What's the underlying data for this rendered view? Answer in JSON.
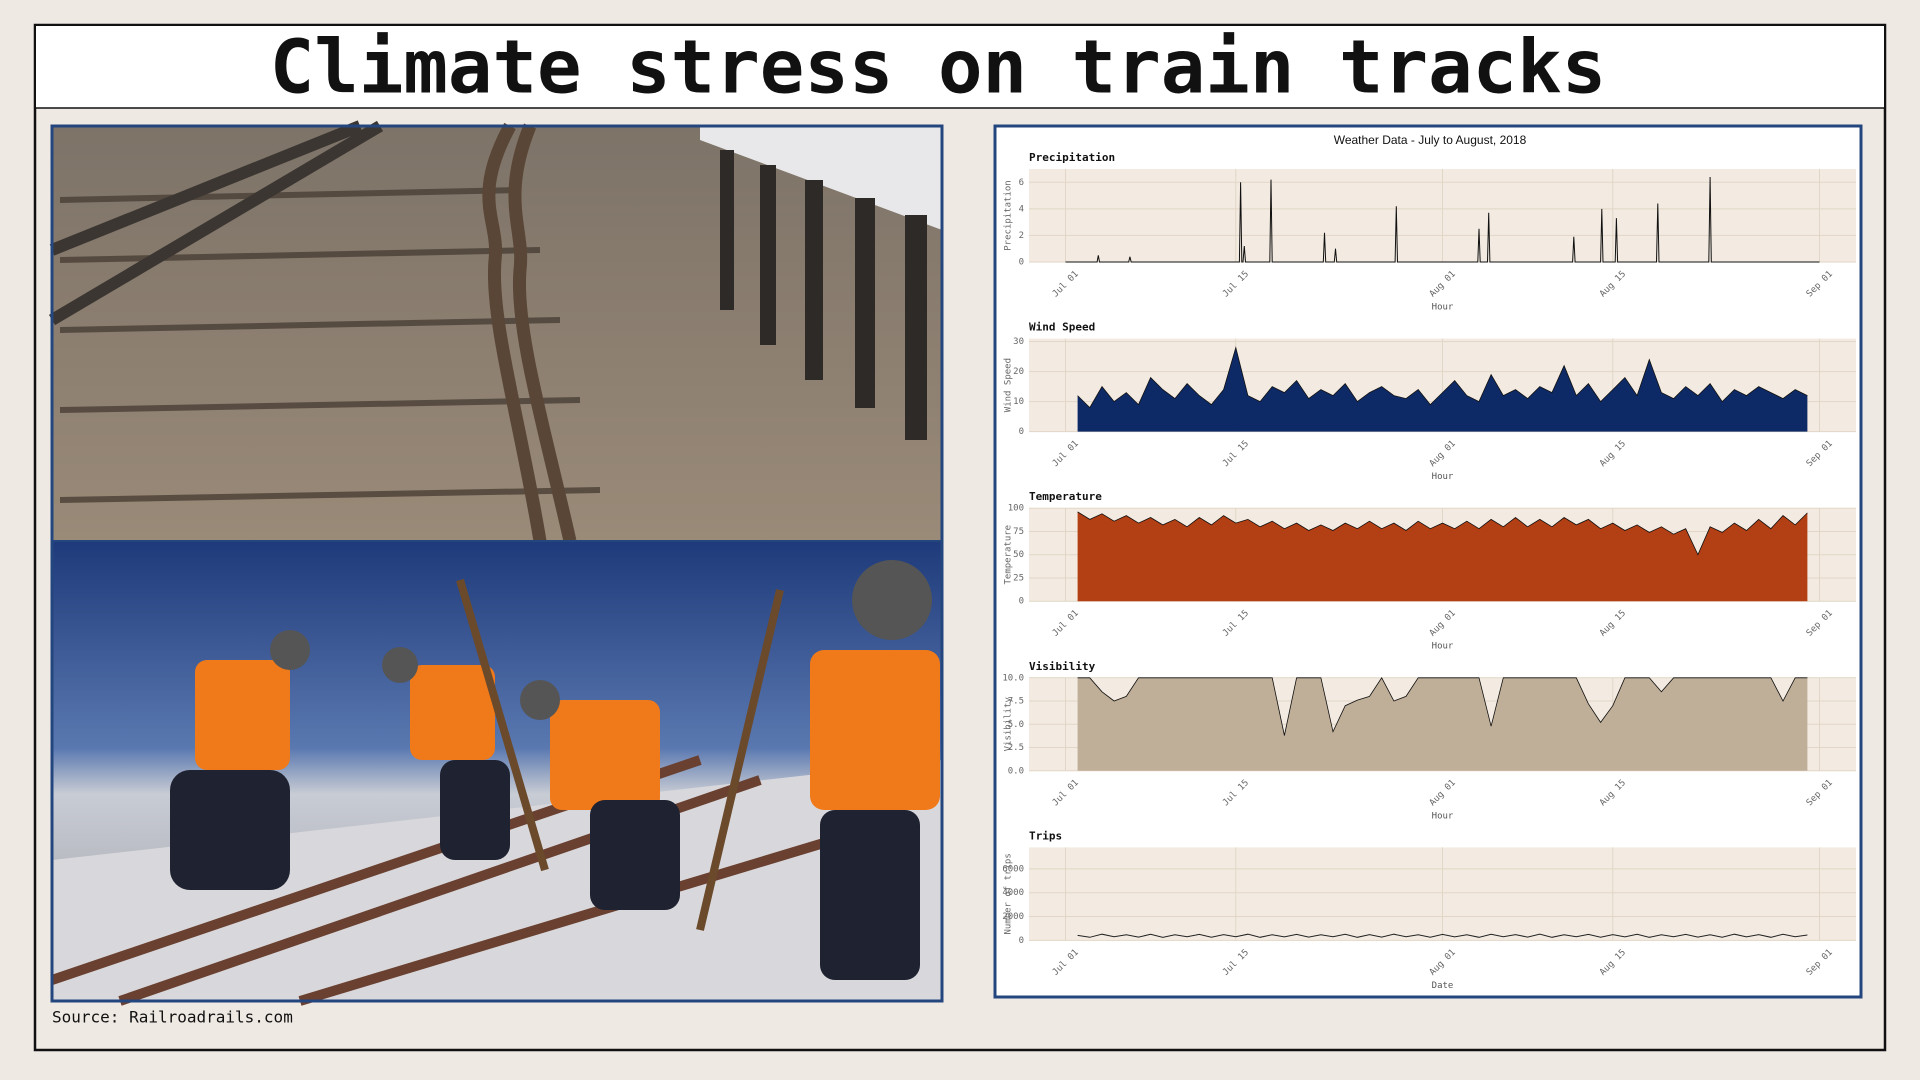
{
  "title": "Climate stress on train tracks",
  "source": "Source: Railroadrails.com",
  "figure_title": "Weather Data -  July to August, 2018",
  "chart_data": [
    {
      "type": "line",
      "title": "Precipitation",
      "xlabel": "Hour",
      "ylabel": "Precipitation",
      "color": "#111111",
      "grid": true,
      "x": [
        0,
        2.6,
        2.7,
        2.8,
        5.2,
        5.3,
        5.4,
        14.3,
        14.4,
        14.5,
        14.6,
        14.7,
        14.8,
        16.8,
        16.9,
        17,
        21.2,
        21.3,
        21.4,
        22.1,
        22.2,
        22.3,
        27.1,
        27.2,
        27.3,
        33.9,
        34,
        34.1,
        34.7,
        34.8,
        34.9,
        41.7,
        41.8,
        41.9,
        44,
        44.1,
        44.2,
        45.2,
        45.3,
        45.4,
        48.6,
        48.7,
        48.8,
        52.9,
        53,
        53.1,
        62
      ],
      "values": [
        0,
        0,
        0.5,
        0,
        0,
        0.4,
        0,
        0,
        6,
        0,
        0,
        1.2,
        0,
        0,
        6.2,
        0,
        0,
        2.2,
        0,
        0,
        1,
        0,
        0,
        4.2,
        0,
        0,
        2.5,
        0,
        0,
        3.7,
        0,
        0,
        1.9,
        0,
        0,
        4,
        0,
        0,
        3.3,
        0,
        0,
        4.4,
        0,
        0,
        6.4,
        0,
        0
      ],
      "xlim": [
        -3,
        65
      ],
      "xticks": [
        {
          "value": 0,
          "label": "Jul 01"
        },
        {
          "value": 14,
          "label": "Jul 15"
        },
        {
          "value": 31,
          "label": "Aug 01"
        },
        {
          "value": 45,
          "label": "Aug 15"
        },
        {
          "value": 62,
          "label": "Sep 01"
        }
      ],
      "ylim": [
        0,
        7
      ],
      "yticks": [
        0,
        2,
        4,
        6
      ]
    },
    {
      "type": "area",
      "title": "Wind Speed",
      "xlabel": "Hour",
      "ylabel": "Wind Speed",
      "color": "#0e2a66",
      "grid": true,
      "x": [
        1,
        2,
        3,
        4,
        5,
        6,
        7,
        8,
        9,
        10,
        11,
        12,
        13,
        14,
        15,
        16,
        17,
        18,
        19,
        20,
        21,
        22,
        23,
        24,
        25,
        26,
        27,
        28,
        29,
        30,
        31,
        32,
        33,
        34,
        35,
        36,
        37,
        38,
        39,
        40,
        41,
        42,
        43,
        44,
        45,
        46,
        47,
        48,
        49,
        50,
        51,
        52,
        53,
        54,
        55,
        56,
        57,
        58,
        59,
        60,
        61
      ],
      "values": [
        12,
        8,
        15,
        10,
        13,
        9,
        18,
        14,
        11,
        16,
        12,
        9,
        14,
        28,
        12,
        10,
        15,
        13,
        17,
        11,
        14,
        12,
        16,
        10,
        13,
        15,
        12,
        11,
        14,
        9,
        13,
        17,
        12,
        10,
        19,
        12,
        14,
        11,
        15,
        13,
        22,
        12,
        16,
        10,
        14,
        18,
        12,
        24,
        13,
        11,
        15,
        12,
        16,
        10,
        14,
        12,
        15,
        13,
        11,
        14,
        12
      ],
      "xlim": [
        -3,
        65
      ],
      "xticks": [
        {
          "value": 0,
          "label": "Jul 01"
        },
        {
          "value": 14,
          "label": "Jul 15"
        },
        {
          "value": 31,
          "label": "Aug 01"
        },
        {
          "value": 45,
          "label": "Aug 15"
        },
        {
          "value": 62,
          "label": "Sep 01"
        }
      ],
      "ylim": [
        0,
        31
      ],
      "yticks": [
        0,
        10,
        20,
        30
      ]
    },
    {
      "type": "area",
      "title": "Temperature",
      "xlabel": "Hour",
      "ylabel": "Temperature",
      "color": "#b33f14",
      "grid": true,
      "x": [
        1,
        2,
        3,
        4,
        5,
        6,
        7,
        8,
        9,
        10,
        11,
        12,
        13,
        14,
        15,
        16,
        17,
        18,
        19,
        20,
        21,
        22,
        23,
        24,
        25,
        26,
        27,
        28,
        29,
        30,
        31,
        32,
        33,
        34,
        35,
        36,
        37,
        38,
        39,
        40,
        41,
        42,
        43,
        44,
        45,
        46,
        47,
        48,
        49,
        50,
        51,
        52,
        53,
        54,
        55,
        56,
        57,
        58,
        59,
        60,
        61
      ],
      "values": [
        96,
        88,
        94,
        86,
        92,
        84,
        90,
        82,
        88,
        80,
        90,
        82,
        92,
        84,
        88,
        80,
        86,
        78,
        84,
        76,
        82,
        76,
        84,
        78,
        86,
        78,
        84,
        76,
        86,
        78,
        84,
        78,
        86,
        78,
        88,
        80,
        90,
        80,
        88,
        80,
        90,
        82,
        88,
        78,
        84,
        76,
        82,
        74,
        80,
        72,
        78,
        50,
        80,
        74,
        84,
        76,
        88,
        78,
        92,
        82,
        95
      ],
      "xlim": [
        -3,
        65
      ],
      "xticks": [
        {
          "value": 0,
          "label": "Jul 01"
        },
        {
          "value": 14,
          "label": "Jul 15"
        },
        {
          "value": 31,
          "label": "Aug 01"
        },
        {
          "value": 45,
          "label": "Aug 15"
        },
        {
          "value": 62,
          "label": "Sep 01"
        }
      ],
      "ylim": [
        0,
        100
      ],
      "yticks": [
        0,
        25,
        50,
        75,
        100
      ]
    },
    {
      "type": "area",
      "title": "Visibility",
      "xlabel": "Hour",
      "ylabel": "Visibility",
      "color": "#bfae98",
      "grid": true,
      "x": [
        1,
        2,
        3,
        4,
        5,
        6,
        7,
        8,
        9,
        10,
        11,
        12,
        13,
        14,
        15,
        16,
        17,
        18,
        19,
        20,
        21,
        22,
        23,
        24,
        25,
        26,
        27,
        28,
        29,
        30,
        31,
        32,
        33,
        34,
        35,
        36,
        37,
        38,
        39,
        40,
        41,
        42,
        43,
        44,
        45,
        46,
        47,
        48,
        49,
        50,
        51,
        52,
        53,
        54,
        55,
        56,
        57,
        58,
        59,
        60,
        61
      ],
      "values": [
        10,
        10,
        8.5,
        7.5,
        8,
        10,
        10,
        10,
        10,
        10,
        10,
        10,
        10,
        10,
        10,
        10,
        10,
        3.8,
        10,
        10,
        10,
        4.2,
        7,
        7.6,
        8,
        10,
        7.5,
        8,
        10,
        10,
        10,
        10,
        10,
        10,
        4.8,
        10,
        10,
        10,
        10,
        10,
        10,
        10,
        7.2,
        5.2,
        7,
        10,
        10,
        10,
        8.5,
        10,
        10,
        10,
        10,
        10,
        10,
        10,
        10,
        10,
        7.5,
        10,
        10
      ],
      "xlim": [
        -3,
        65
      ],
      "xticks": [
        {
          "value": 0,
          "label": "Jul 01"
        },
        {
          "value": 14,
          "label": "Jul 15"
        },
        {
          "value": 31,
          "label": "Aug 01"
        },
        {
          "value": 45,
          "label": "Aug 15"
        },
        {
          "value": 62,
          "label": "Sep 01"
        }
      ],
      "ylim": [
        0,
        10
      ],
      "yticks": [
        {
          "value": 0,
          "label": "0.0"
        },
        {
          "value": 2.5,
          "label": "2.5"
        },
        {
          "value": 5,
          "label": "5.0"
        },
        {
          "value": 7.5,
          "label": "7.5"
        },
        {
          "value": 10,
          "label": "10.0"
        }
      ]
    },
    {
      "type": "line",
      "title": "Trips",
      "xlabel": "Date",
      "ylabel": "Number of trips",
      "color": "#222222",
      "grid": true,
      "x": [
        1,
        2,
        3,
        4,
        5,
        6,
        7,
        8,
        9,
        10,
        11,
        12,
        13,
        14,
        15,
        16,
        17,
        18,
        19,
        20,
        21,
        22,
        23,
        24,
        25,
        26,
        27,
        28,
        29,
        30,
        31,
        32,
        33,
        34,
        35,
        36,
        37,
        38,
        39,
        40,
        41,
        42,
        43,
        44,
        45,
        46,
        47,
        48,
        49,
        50,
        51,
        52,
        53,
        54,
        55,
        56,
        57,
        58,
        59,
        60,
        61
      ],
      "values": [
        420,
        260,
        520,
        300,
        480,
        280,
        510,
        250,
        470,
        300,
        500,
        270,
        490,
        310,
        520,
        260,
        480,
        290,
        500,
        280,
        470,
        300,
        510,
        260,
        490,
        280,
        520,
        300,
        480,
        270,
        500,
        290,
        470,
        260,
        510,
        300,
        490,
        280,
        520,
        260,
        480,
        300,
        500,
        270,
        490,
        290,
        510,
        260,
        470,
        300,
        500,
        280,
        480,
        270,
        520,
        290,
        490,
        260,
        510,
        300,
        450
      ],
      "xlim": [
        -3,
        65
      ],
      "xticks": [
        {
          "value": 0,
          "label": "Jul 01"
        },
        {
          "value": 14,
          "label": "Jul 15"
        },
        {
          "value": 31,
          "label": "Aug 01"
        },
        {
          "value": 45,
          "label": "Aug 15"
        },
        {
          "value": 62,
          "label": "Sep 01"
        }
      ],
      "ylim": [
        0,
        7800
      ],
      "yticks": [
        0,
        2000,
        4000,
        6000
      ]
    }
  ]
}
